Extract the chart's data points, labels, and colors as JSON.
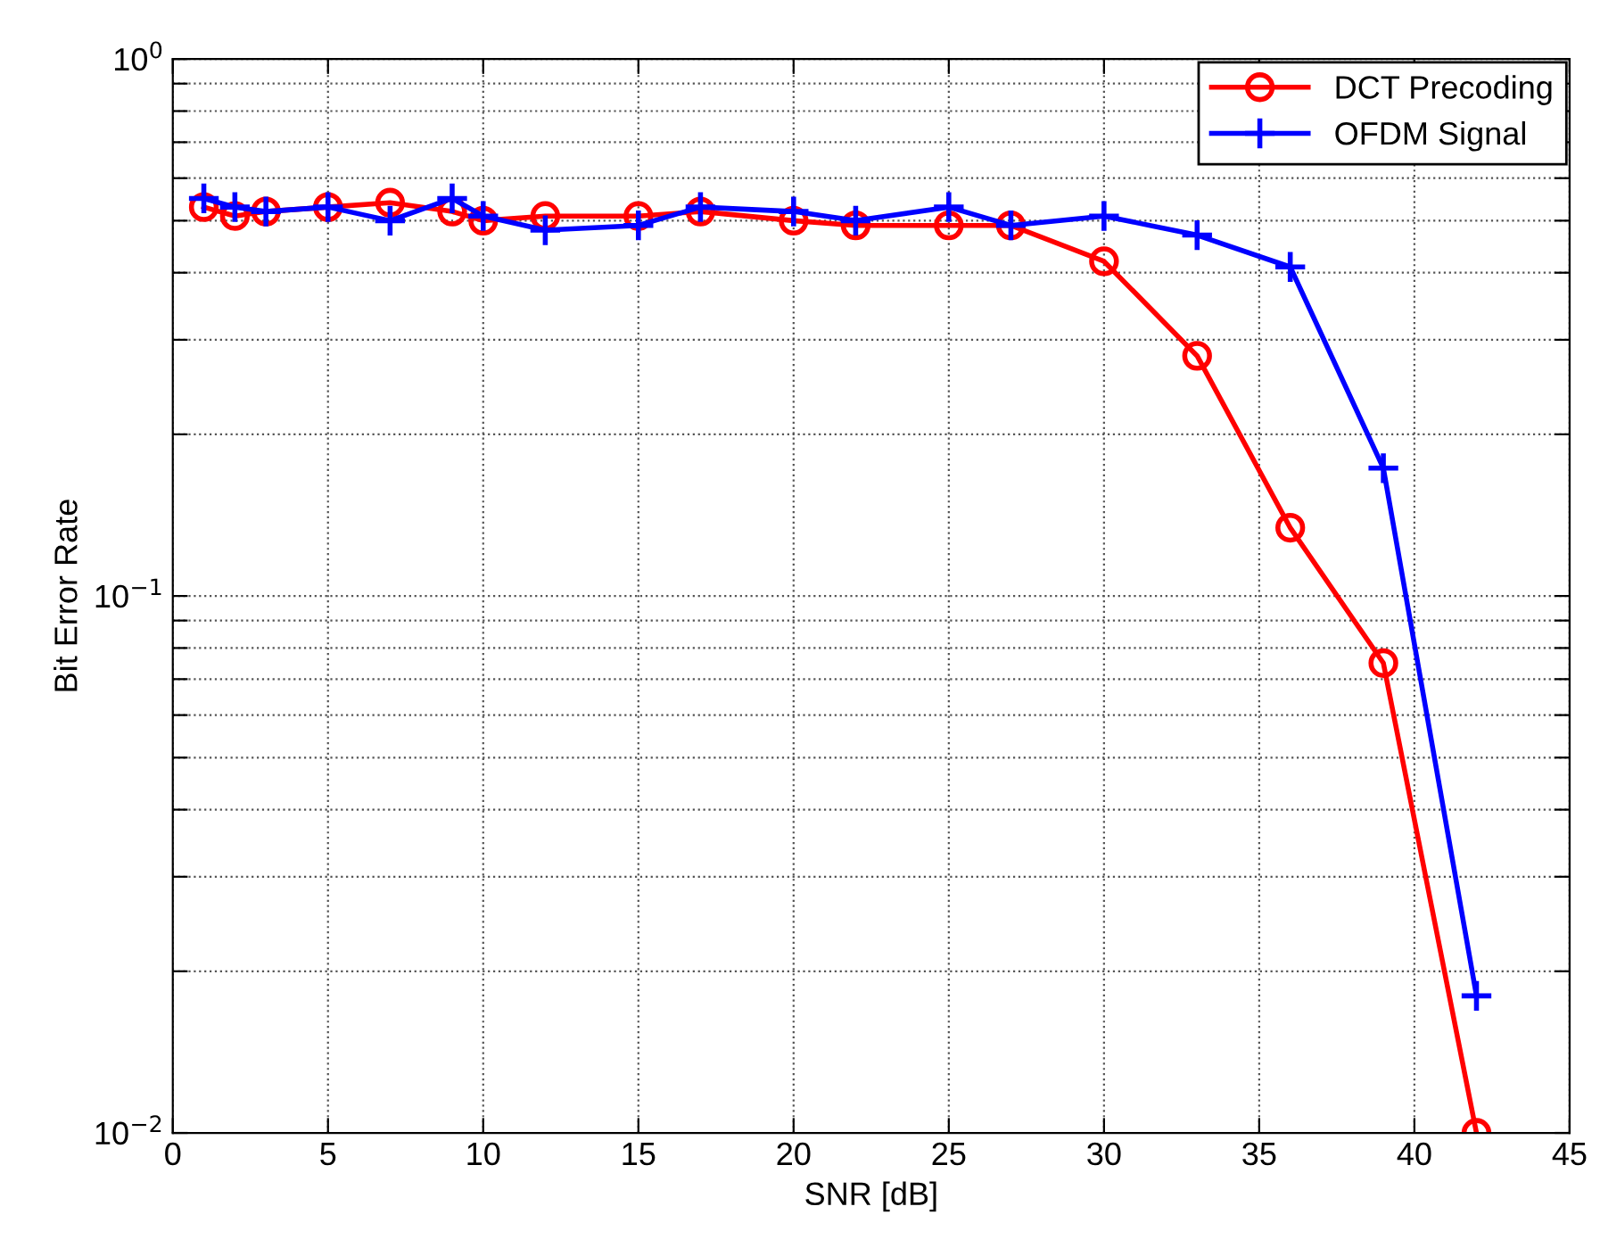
{
  "chart_data": {
    "type": "line",
    "xlabel": "SNR [dB]",
    "ylabel": "Bit Error Rate",
    "log": "y",
    "grid": true,
    "legend": "top right",
    "xlim": [
      0,
      45
    ],
    "xticks": [
      0,
      5,
      10,
      15,
      20,
      25,
      30,
      35,
      40,
      45
    ],
    "ylim": [
      0.01,
      1
    ],
    "yticks": [
      {
        "value": 0.01,
        "label": "10$^{−2}$"
      },
      {
        "value": 0.02,
        "label": null
      },
      {
        "value": 0.03,
        "label": null
      },
      {
        "value": 0.04,
        "label": null
      },
      {
        "value": 0.05,
        "label": null
      },
      {
        "value": 0.06,
        "label": null
      },
      {
        "value": 0.07,
        "label": null
      },
      {
        "value": 0.08,
        "label": null
      },
      {
        "value": 0.09,
        "label": null
      },
      {
        "value": 0.1,
        "label": "10$^{−1}$"
      },
      {
        "value": 0.2,
        "label": null
      },
      {
        "value": 0.3,
        "label": null
      },
      {
        "value": 0.4,
        "label": null
      },
      {
        "value": 0.5,
        "label": null
      },
      {
        "value": 0.6,
        "label": null
      },
      {
        "value": 0.7,
        "label": null
      },
      {
        "value": 0.8,
        "label": null
      },
      {
        "value": 0.9,
        "label": null
      },
      {
        "value": 1,
        "label": "10$^{0}$"
      }
    ],
    "series": [
      {
        "name": "DCT Precoding",
        "color": "#ff0000",
        "marker": "circle",
        "x": [
          1,
          2,
          3,
          5,
          7,
          9,
          10,
          12,
          15,
          17,
          20,
          22,
          25,
          27,
          30,
          33,
          36,
          39,
          42
        ],
        "values": [
          0.53,
          0.51,
          0.52,
          0.53,
          0.54,
          0.52,
          0.5,
          0.51,
          0.51,
          0.52,
          0.5,
          0.49,
          0.49,
          0.49,
          0.42,
          0.28,
          0.134,
          0.075,
          0.01
        ]
      },
      {
        "name": "OFDM Signal",
        "color": "#0000ff",
        "marker": "cross",
        "x": [
          1,
          2,
          3,
          5,
          7,
          9,
          10,
          12,
          15,
          17,
          20,
          22,
          25,
          27,
          30,
          33,
          36,
          39,
          42
        ],
        "values": [
          0.55,
          0.53,
          0.52,
          0.53,
          0.5,
          0.55,
          0.51,
          0.48,
          0.49,
          0.53,
          0.52,
          0.5,
          0.53,
          0.49,
          0.51,
          0.47,
          0.41,
          0.173,
          0.018
        ]
      }
    ]
  }
}
